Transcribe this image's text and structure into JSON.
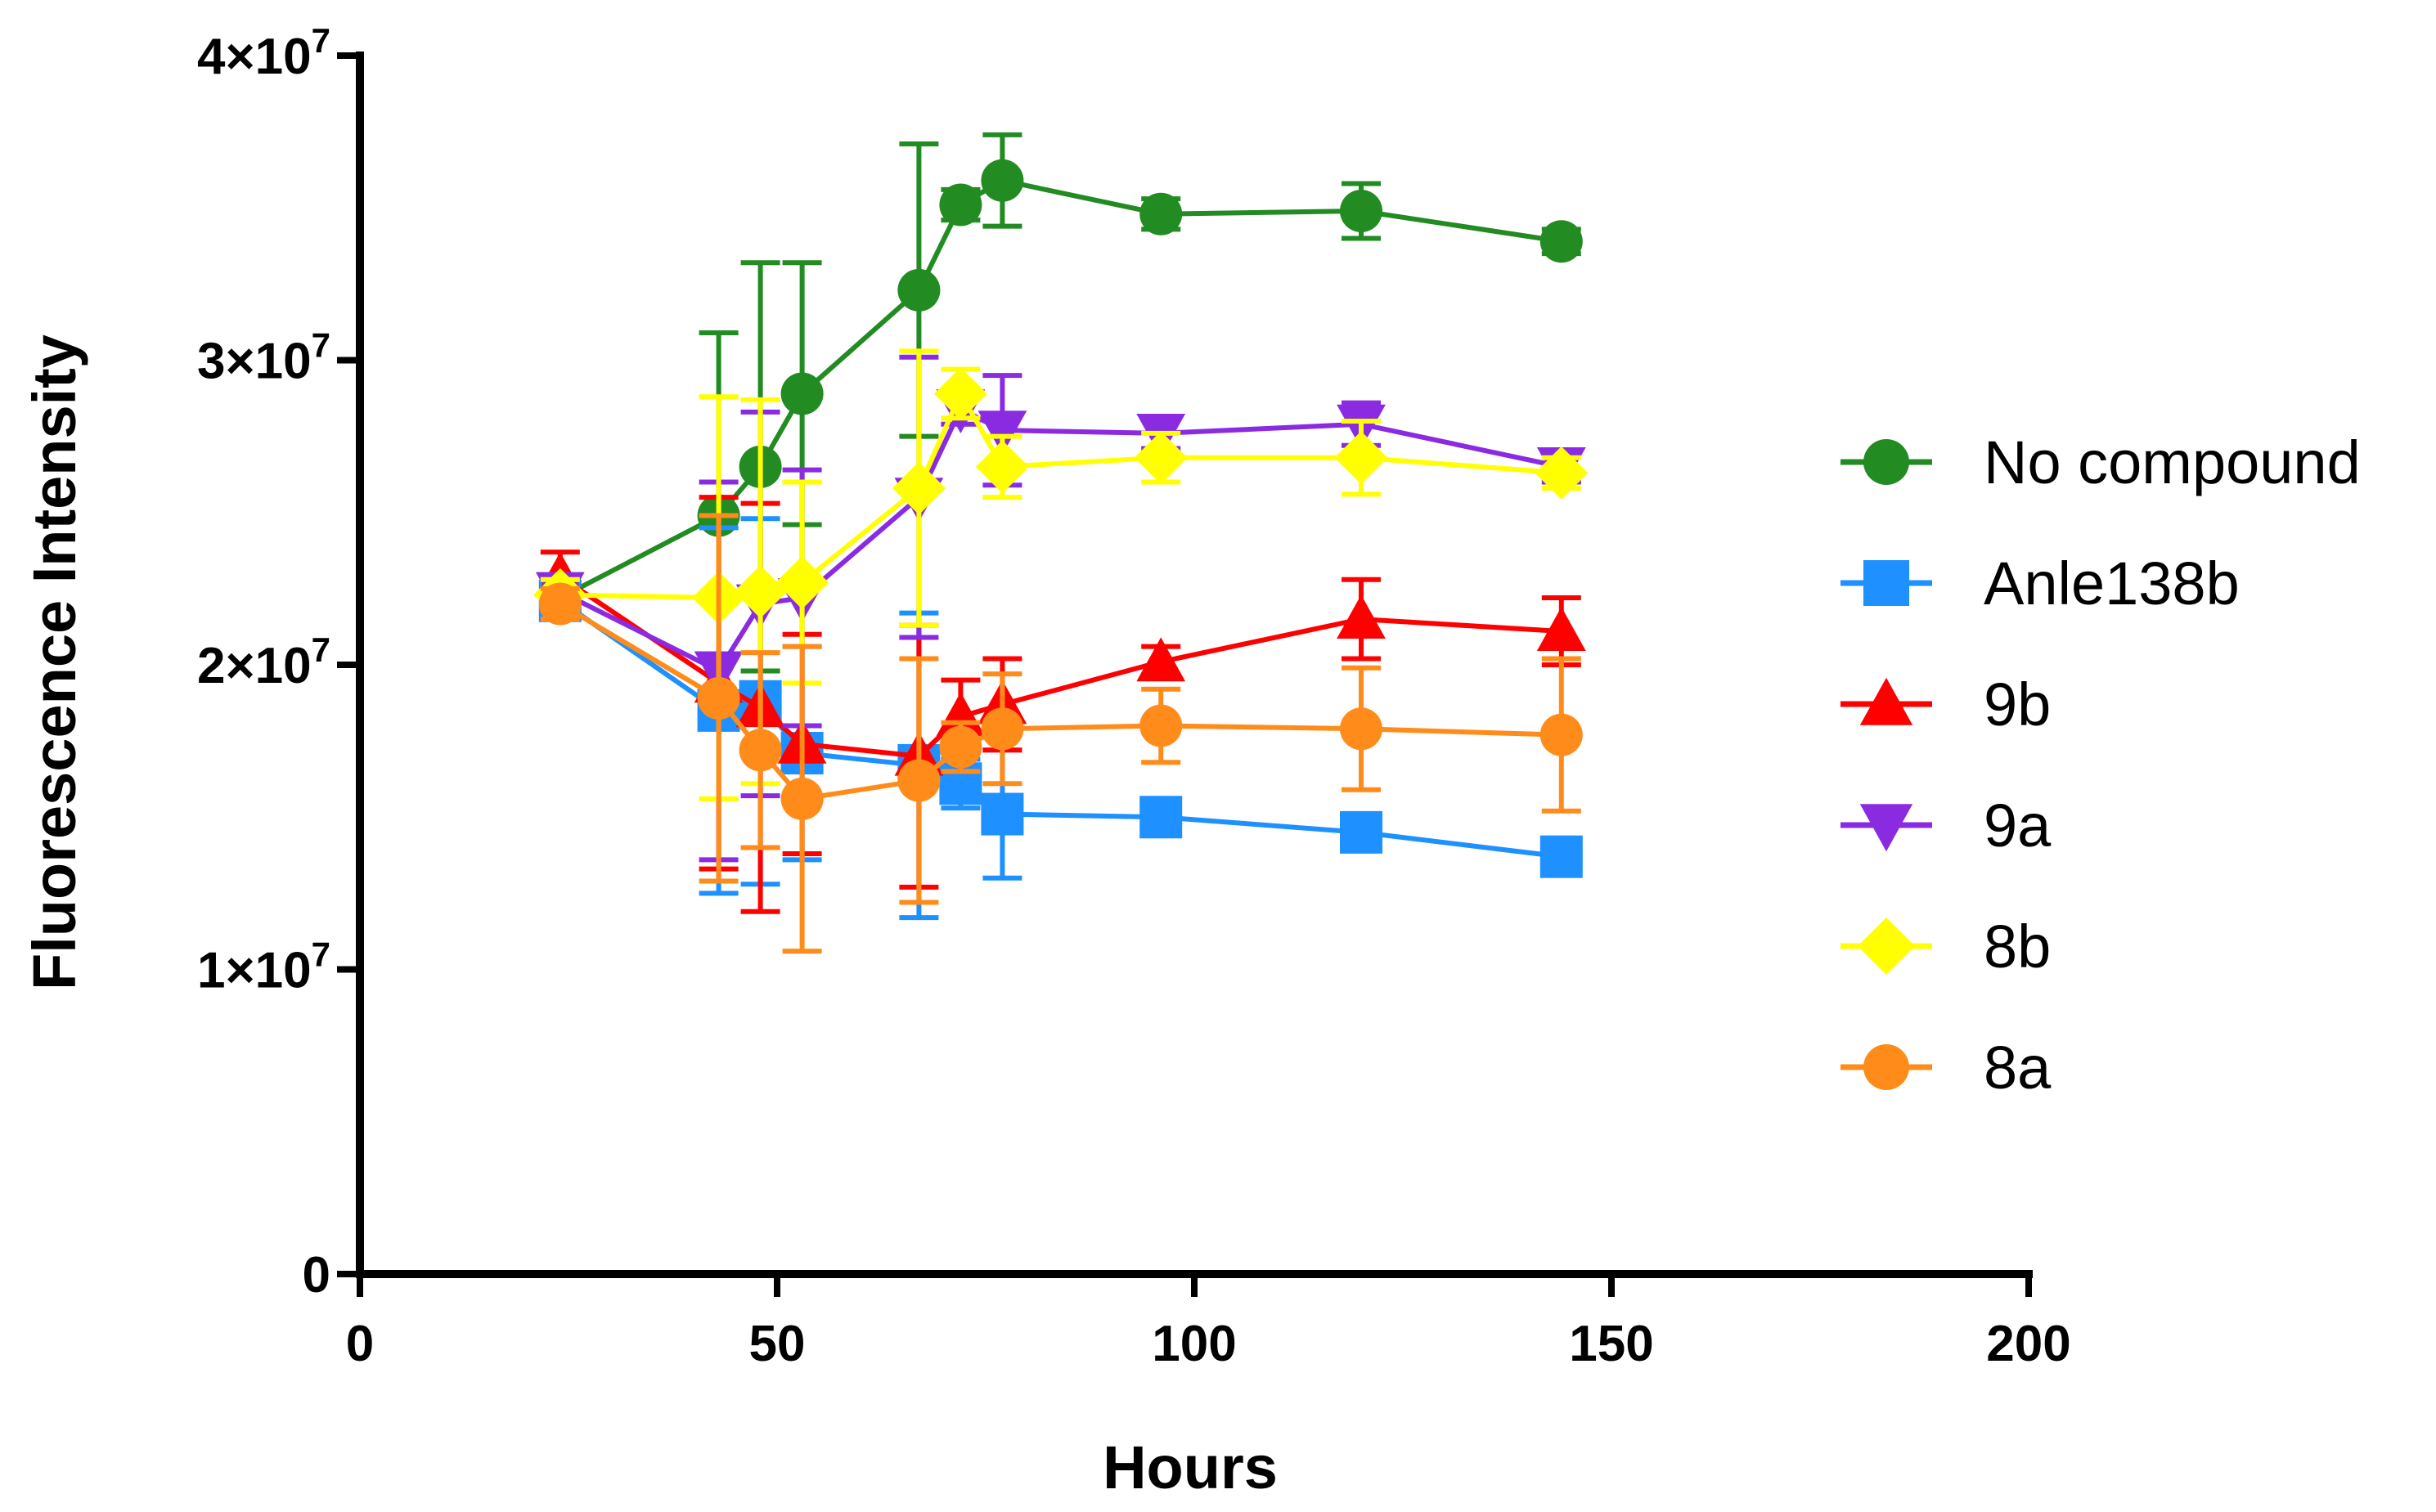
{
  "chart_data": {
    "type": "line",
    "title": "",
    "xlabel": "Hours",
    "ylabel": "Fluorescence Intensity",
    "xlim": [
      0,
      200
    ],
    "ylim": [
      0,
      40000000
    ],
    "x_ticks": [
      {
        "value": 0,
        "label": "0"
      },
      {
        "value": 50,
        "label": "50"
      },
      {
        "value": 100,
        "label": "100"
      },
      {
        "value": 150,
        "label": "150"
      },
      {
        "value": 200,
        "label": "200"
      }
    ],
    "y_ticks": [
      {
        "value": 0,
        "mantissa": "0",
        "exponent": ""
      },
      {
        "value": 10000000,
        "mantissa": "1×10",
        "exponent": "7"
      },
      {
        "value": 20000000,
        "mantissa": "2×10",
        "exponent": "7"
      },
      {
        "value": 30000000,
        "mantissa": "3×10",
        "exponent": "7"
      },
      {
        "value": 40000000,
        "mantissa": "4×10",
        "exponent": "7"
      }
    ],
    "legend_position": "right",
    "series": [
      {
        "name": "No compound",
        "color": "#228B22",
        "marker": "circle",
        "x": [
          24,
          43,
          48,
          53,
          67,
          72,
          77,
          96,
          120,
          144
        ],
        "y": [
          22200000,
          24900000,
          26500000,
          28900000,
          32300000,
          35100000,
          35900000,
          34800000,
          34900000,
          33900000
        ],
        "err": [
          500000,
          6000000,
          6700000,
          4300000,
          4800000,
          500000,
          1500000,
          500000,
          900000,
          400000
        ]
      },
      {
        "name": "Anle138b",
        "color": "#1E90FF",
        "marker": "square",
        "x": [
          24,
          43,
          48,
          53,
          67,
          72,
          77,
          96,
          120,
          144
        ],
        "y": [
          22100000,
          18500000,
          18800000,
          17100000,
          16700000,
          16100000,
          15100000,
          15000000,
          14500000,
          13700000
        ],
        "err": [
          500000,
          6000000,
          6000000,
          3500000,
          5000000,
          800000,
          2100000,
          500000,
          500000,
          500000
        ]
      },
      {
        "name": "9b",
        "color": "#FF0000",
        "marker": "triangle-up",
        "x": [
          24,
          43,
          48,
          53,
          67,
          72,
          77,
          96,
          120,
          144
        ],
        "y": [
          22900000,
          19400000,
          18600000,
          17400000,
          17000000,
          18300000,
          18700000,
          20100000,
          21500000,
          21100000
        ],
        "err": [
          800000,
          6100000,
          6700000,
          3600000,
          4300000,
          1200000,
          1500000,
          500000,
          1300000,
          1100000
        ]
      },
      {
        "name": "9a",
        "color": "#8A2BE2",
        "marker": "triangle-down",
        "x": [
          24,
          43,
          48,
          53,
          67,
          72,
          77,
          96,
          120,
          144
        ],
        "y": [
          22400000,
          19800000,
          22000000,
          22200000,
          25500000,
          28400000,
          27700000,
          27600000,
          27900000,
          26500000
        ],
        "err": [
          500000,
          6200000,
          6300000,
          4200000,
          4600000,
          500000,
          1800000,
          500000,
          700000,
          500000
        ]
      },
      {
        "name": "8b",
        "color": "#FFFF00",
        "marker": "diamond",
        "x": [
          24,
          43,
          48,
          53,
          67,
          72,
          77,
          96,
          120,
          144
        ],
        "y": [
          22300000,
          22200000,
          22400000,
          22700000,
          25800000,
          28900000,
          26500000,
          26800000,
          26800000,
          26300000
        ],
        "err": [
          500000,
          6600000,
          6300000,
          3300000,
          4500000,
          800000,
          1000000,
          800000,
          1200000,
          500000
        ]
      },
      {
        "name": "8a",
        "color": "#FF8C1A",
        "marker": "circle",
        "x": [
          24,
          43,
          48,
          53,
          67,
          72,
          77,
          96,
          120,
          144
        ],
        "y": [
          22000000,
          18900000,
          17200000,
          15600000,
          16200000,
          17300000,
          17900000,
          18000000,
          17900000,
          17700000
        ],
        "err": [
          500000,
          6000000,
          3200000,
          5000000,
          4000000,
          800000,
          1800000,
          1200000,
          2000000,
          2500000
        ]
      }
    ]
  }
}
